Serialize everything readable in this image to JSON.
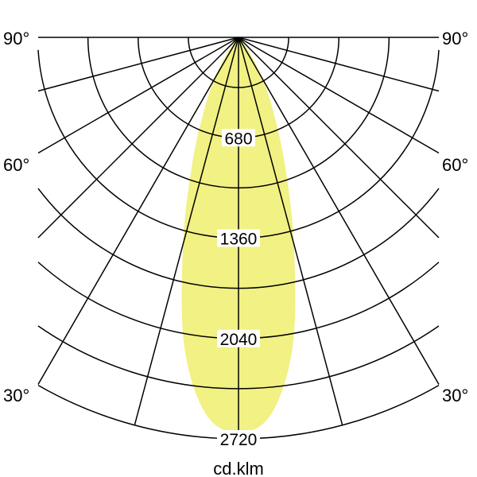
{
  "chart_data": {
    "type": "polar",
    "unit_label": "cd.klm",
    "radial_ticks": [
      340,
      680,
      1020,
      1360,
      1700,
      2040,
      2380,
      2720
    ],
    "radial_tick_labels": [
      "680",
      "1360",
      "2040",
      "2720"
    ],
    "radial_range": [
      0,
      2720
    ],
    "angle_step_deg": 15,
    "angle_range_deg": [
      -90,
      90
    ],
    "angle_labels": [
      "90°",
      "60°",
      "30°"
    ],
    "fill_color": "#f1f184",
    "grid_color": "#000000",
    "series": [
      {
        "angles_deg": [
          0,
          5,
          10,
          15,
          20,
          25,
          30,
          35,
          40,
          45
        ],
        "values": [
          2680,
          2560,
          2120,
          1450,
          920,
          560,
          330,
          150,
          40,
          0
        ],
        "symmetric": true
      }
    ]
  }
}
